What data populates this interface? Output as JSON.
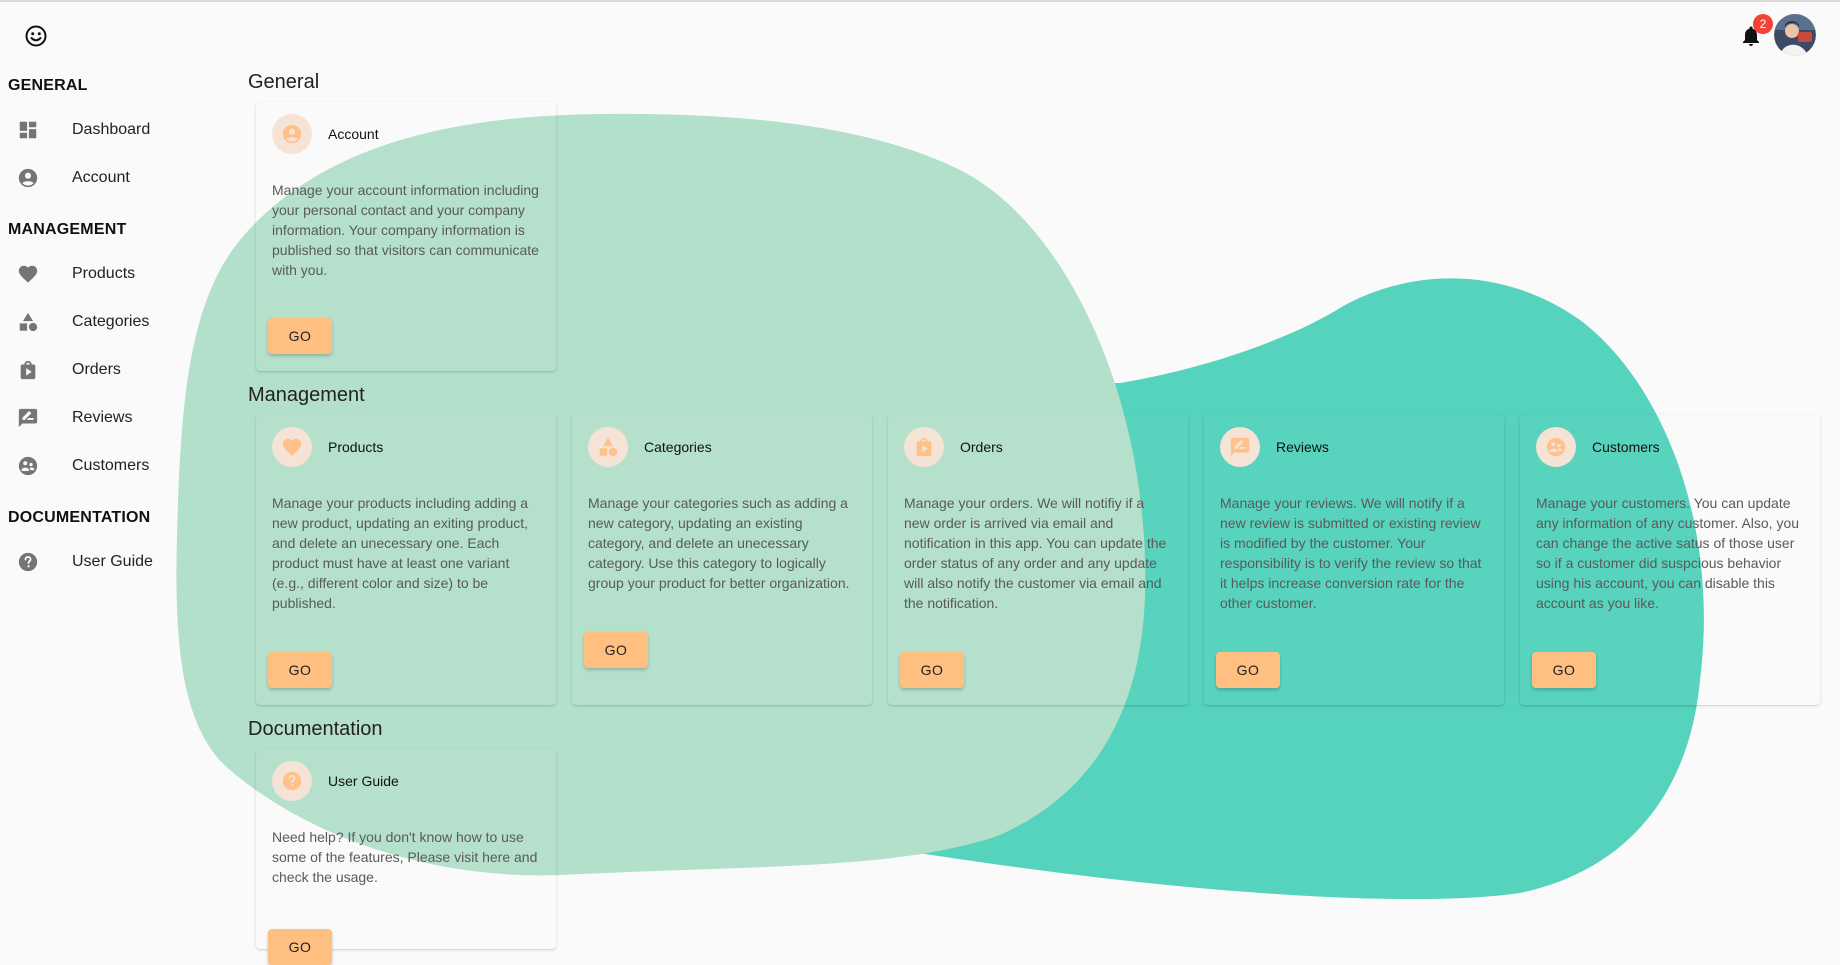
{
  "header": {
    "logo_icon": "smiley-icon",
    "notification_icon": "bell-icon",
    "notification_count": "2",
    "avatar_icon": "user-avatar"
  },
  "sidebar": {
    "sections": [
      {
        "title": "GENERAL",
        "items": [
          {
            "label": "Dashboard",
            "icon": "dashboard-icon"
          },
          {
            "label": "Account",
            "icon": "account-circle-icon"
          }
        ]
      },
      {
        "title": "MANAGEMENT",
        "items": [
          {
            "label": "Products",
            "icon": "heart-icon"
          },
          {
            "label": "Categories",
            "icon": "shapes-icon"
          },
          {
            "label": "Orders",
            "icon": "shopping-bag-icon"
          },
          {
            "label": "Reviews",
            "icon": "rate-review-icon"
          },
          {
            "label": "Customers",
            "icon": "customers-icon"
          }
        ]
      },
      {
        "title": "DOCUMENTATION",
        "items": [
          {
            "label": "User Guide",
            "icon": "help-icon"
          }
        ]
      }
    ]
  },
  "main": {
    "sections": [
      {
        "title": "General",
        "cards": [
          {
            "title": "Account",
            "icon": "account-circle-icon",
            "description": "Manage your account information including your personal contact and your company information. Your company information is published so that visitors can communicate with you.",
            "button": "GO"
          }
        ]
      },
      {
        "title": "Management",
        "cards": [
          {
            "title": "Products",
            "icon": "heart-icon",
            "description": "Manage your products including adding a new product, updating an exiting product, and delete an unecessary one. Each product must have at least one variant (e.g., different color and size) to be published.",
            "button": "GO"
          },
          {
            "title": "Categories",
            "icon": "shapes-icon",
            "description": "Manage your categories such as adding a new category, updating an existing category, and delete an unecessary category. Use this category to logically group your product for better organization.",
            "button": "GO"
          },
          {
            "title": "Orders",
            "icon": "shopping-bag-icon",
            "description": "Manage your orders. We will notifiy if a new order is arrived via email and notification in this app. You can update the order status of any order and any update will also notify the customer via email and the notification.",
            "button": "GO"
          },
          {
            "title": "Reviews",
            "icon": "rate-review-icon",
            "description": "Manage your reviews. We will notify if a new review is submitted or existing review is modified by the customer. Your responsibility is to verify the review so that it helps increase conversion rate for the other customer.",
            "button": "GO"
          },
          {
            "title": "Customers",
            "icon": "customers-icon",
            "description": "Manage your customers. You can update any information of any customer. Also, you can change the active satus of those user so if a customer did suspcious behavior using his account, you can disable this account as you like.",
            "button": "GO"
          }
        ]
      },
      {
        "title": "Documentation",
        "cards": [
          {
            "title": "User Guide",
            "icon": "help-icon",
            "description": "Need help? If you don't know how to use some of the features, Please visit here and check the usage.",
            "button": "GO"
          }
        ]
      }
    ]
  },
  "colors": {
    "accent": "#ffbf80",
    "blob_light": "#b3e0cb",
    "blob_teal": "#55d3bc",
    "badge": "#f44336"
  }
}
